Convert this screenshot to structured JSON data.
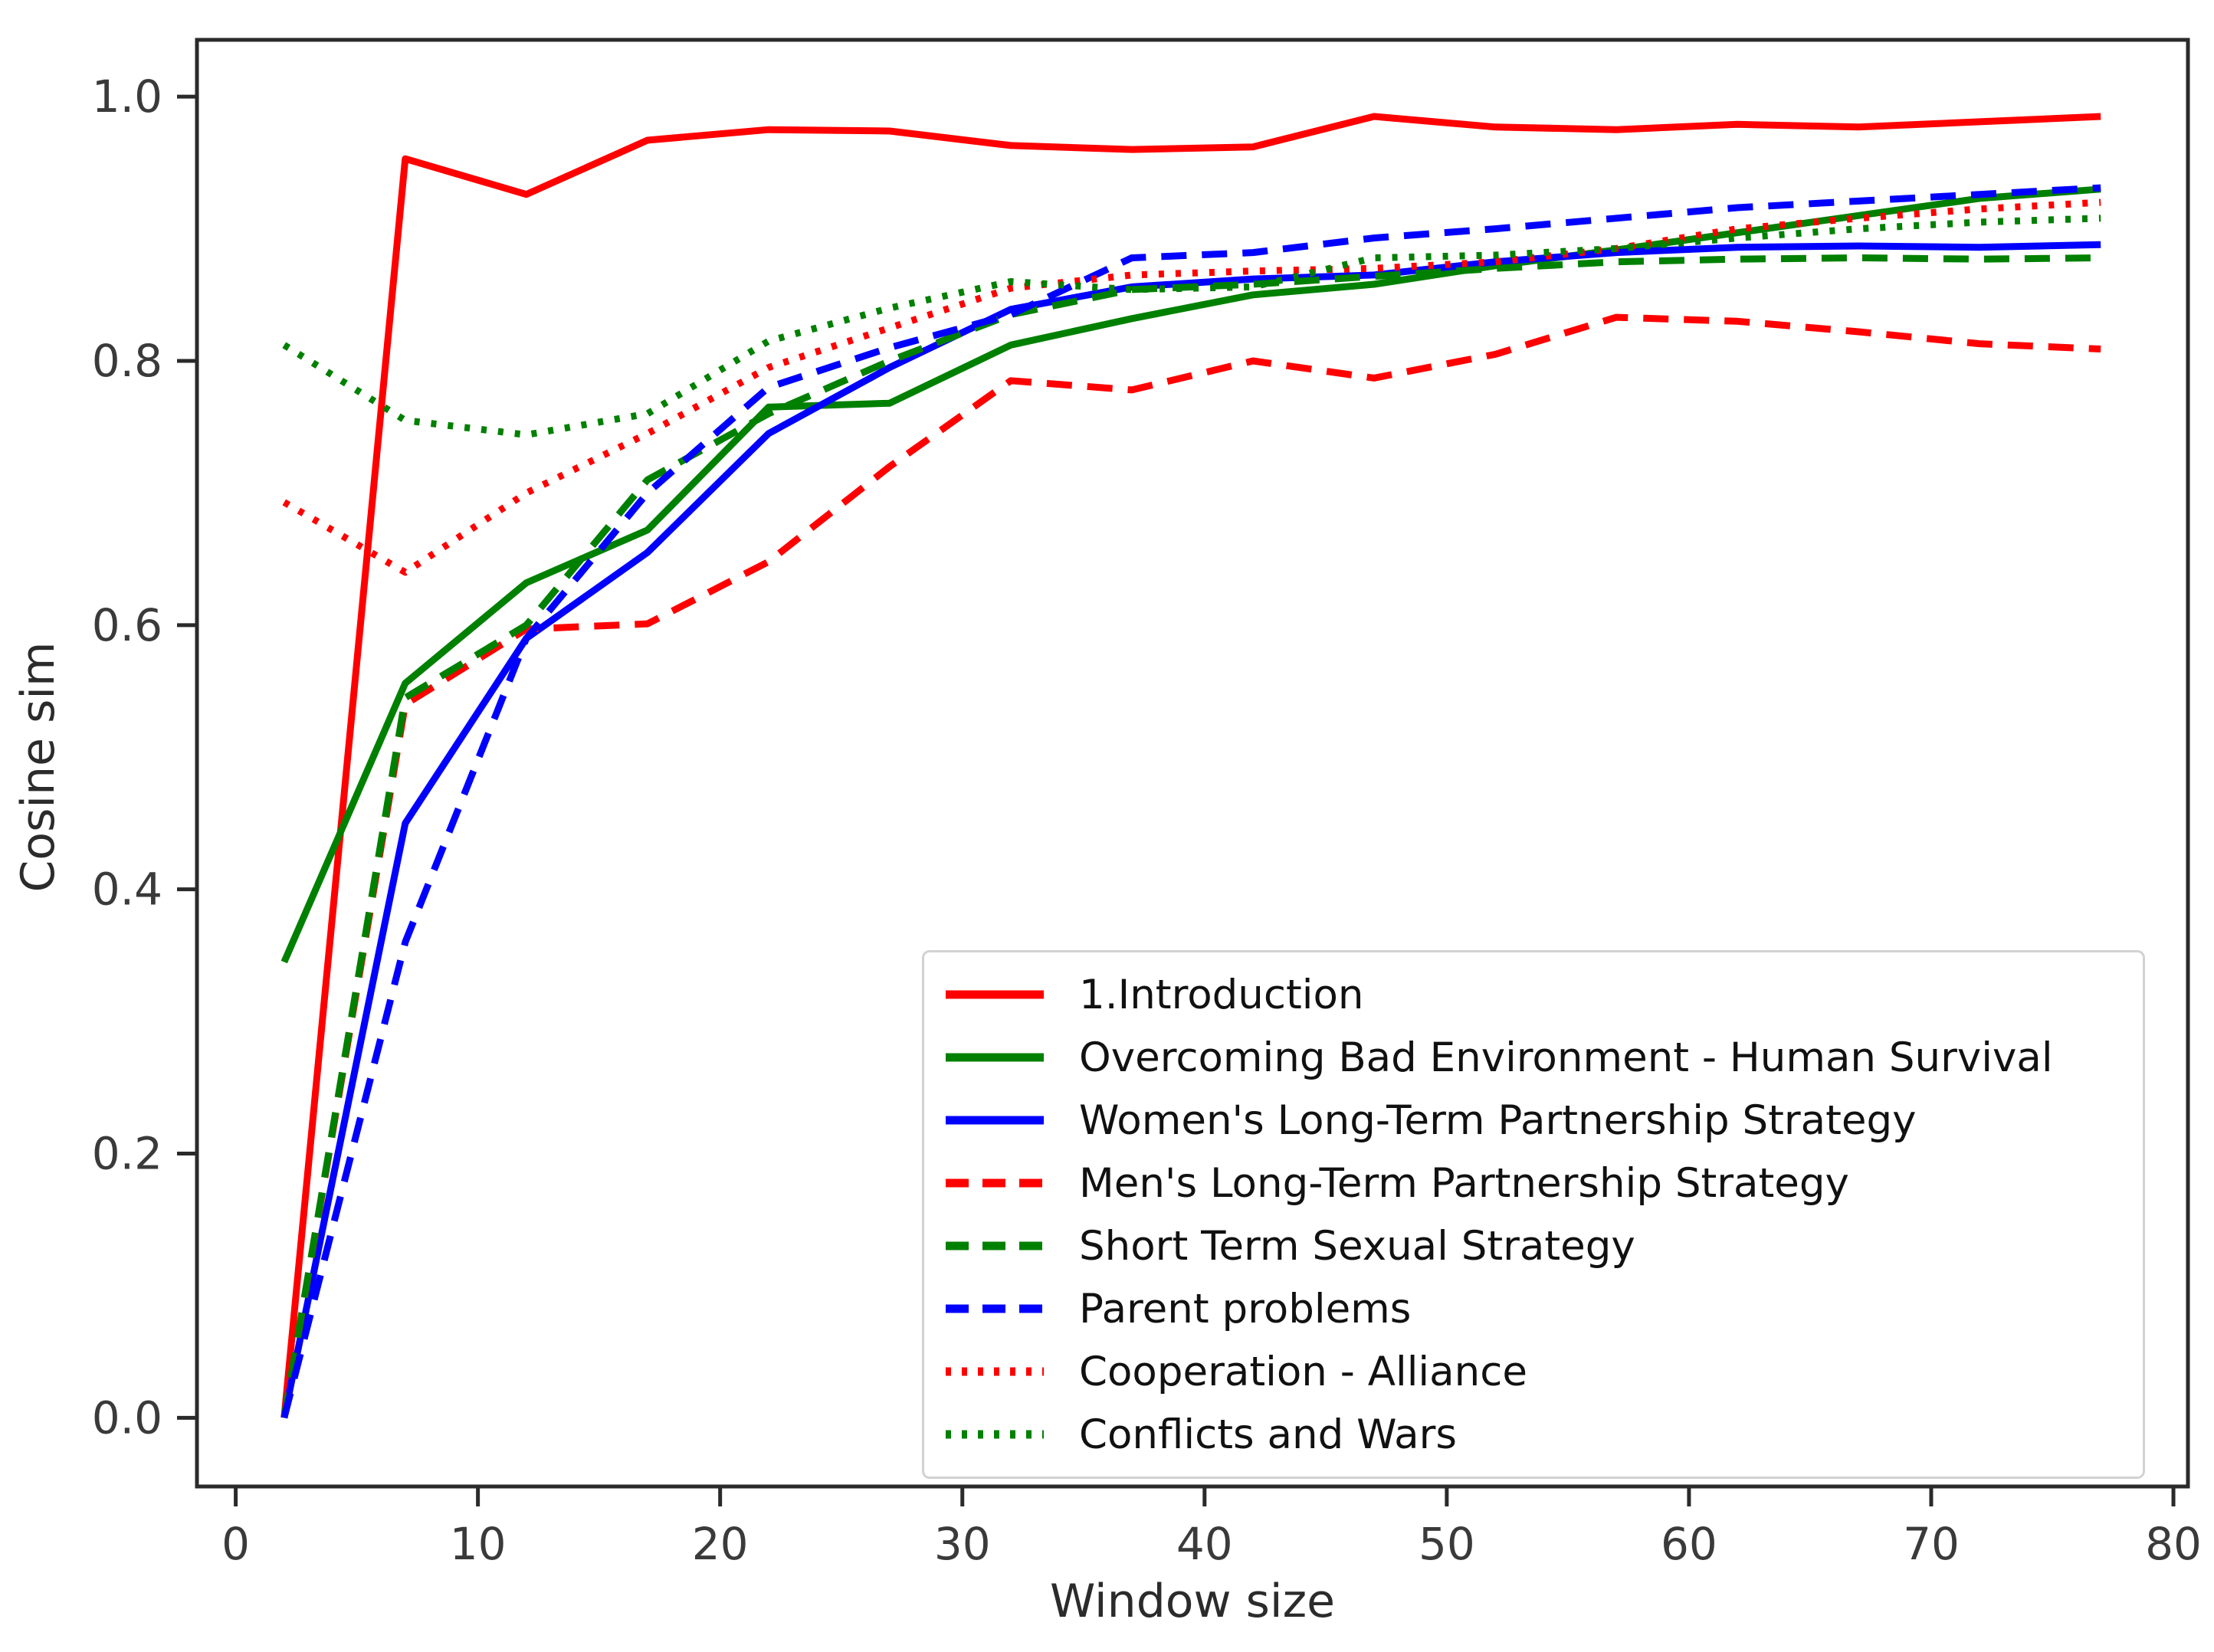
{
  "figure": {
    "background": "#ffffff",
    "plot_border_color": "#2a2a2a"
  },
  "chart_data": {
    "type": "line",
    "title": "",
    "xlabel": "Window size",
    "ylabel": "Cosine sim",
    "grid": false,
    "legend_position": "lower right",
    "xlim": [
      -1.6,
      80.6
    ],
    "ylim": [
      -0.052,
      1.043
    ],
    "x_tick_values": [
      0,
      10,
      20,
      30,
      40,
      50,
      60,
      70,
      80
    ],
    "x_tick_labels": [
      "0",
      "10",
      "20",
      "30",
      "40",
      "50",
      "60",
      "70",
      "80"
    ],
    "y_tick_values": [
      0.0,
      0.2,
      0.4,
      0.6,
      0.8,
      1.0
    ],
    "y_tick_labels": [
      "0.0",
      "0.2",
      "0.4",
      "0.6",
      "0.8",
      "1.0"
    ],
    "x": [
      2,
      7,
      12,
      17,
      22,
      27,
      32,
      37,
      42,
      47,
      52,
      57,
      62,
      67,
      72,
      77
    ],
    "series": [
      {
        "name": "1.Introduction",
        "color": "#ff0000",
        "line_style": "solid",
        "values": [
          0.0,
          0.953,
          0.926,
          0.967,
          0.975,
          0.974,
          0.963,
          0.96,
          0.962,
          0.985,
          0.977,
          0.975,
          0.979,
          0.977,
          0.981,
          0.985
        ]
      },
      {
        "name": "Overcoming Bad Environment - Human Survival",
        "color": "#008000",
        "line_style": "solid",
        "values": [
          0.345,
          0.556,
          0.632,
          0.672,
          0.765,
          0.768,
          0.812,
          0.832,
          0.85,
          0.858,
          0.872,
          0.884,
          0.897,
          0.91,
          0.923,
          0.93
        ]
      },
      {
        "name": "Women's Long-Term Partnership Strategy",
        "color": "#0000ff",
        "line_style": "solid",
        "values": [
          0.0,
          0.45,
          0.59,
          0.655,
          0.745,
          0.795,
          0.839,
          0.856,
          0.862,
          0.865,
          0.875,
          0.882,
          0.886,
          0.887,
          0.886,
          0.888
        ]
      },
      {
        "name": "Men's Long-Term Partnership Strategy",
        "color": "#ff0000",
        "line_style": "dashed",
        "values": [
          0.0,
          0.54,
          0.597,
          0.601,
          0.648,
          0.72,
          0.785,
          0.778,
          0.8,
          0.787,
          0.805,
          0.833,
          0.83,
          0.822,
          0.813,
          0.809
        ]
      },
      {
        "name": "Short Term Sexual Strategy",
        "color": "#008000",
        "line_style": "dashed",
        "values": [
          0.0,
          0.545,
          0.6,
          0.71,
          0.76,
          0.8,
          0.835,
          0.854,
          0.858,
          0.864,
          0.87,
          0.875,
          0.877,
          0.878,
          0.877,
          0.878
        ]
      },
      {
        "name": "Parent problems",
        "color": "#0000ff",
        "line_style": "dashed",
        "values": [
          0.0,
          0.36,
          0.59,
          0.7,
          0.78,
          0.81,
          0.835,
          0.878,
          0.882,
          0.893,
          0.9,
          0.908,
          0.916,
          0.921,
          0.926,
          0.931
        ]
      },
      {
        "name": "Cooperation - Alliance",
        "color": "#ff0000",
        "line_style": "dotted",
        "values": [
          0.693,
          0.64,
          0.7,
          0.745,
          0.795,
          0.825,
          0.855,
          0.865,
          0.868,
          0.87,
          0.875,
          0.885,
          0.9,
          0.908,
          0.915,
          0.92
        ]
      },
      {
        "name": "Conflicts and Wars",
        "color": "#008000",
        "line_style": "dotted",
        "values": [
          0.812,
          0.755,
          0.744,
          0.76,
          0.815,
          0.84,
          0.86,
          0.854,
          0.856,
          0.878,
          0.88,
          0.885,
          0.893,
          0.9,
          0.905,
          0.908
        ]
      }
    ]
  }
}
